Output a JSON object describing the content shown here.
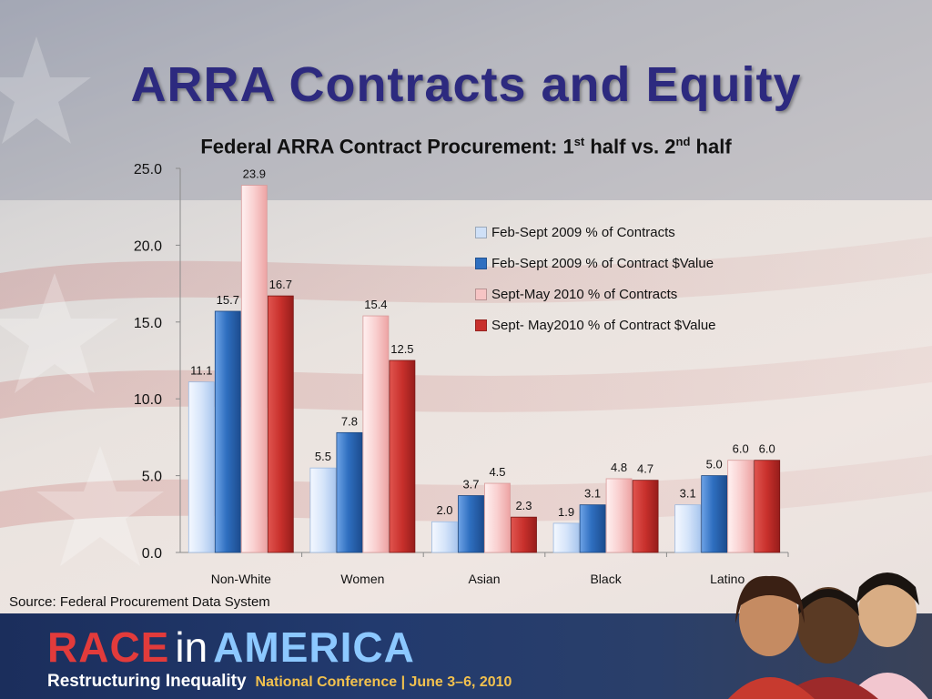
{
  "slide": {
    "title": "ARRA Contracts and Equity",
    "subtitle_main": "Federal ARRA Contract Procurement: 1",
    "subtitle_sup1": "st",
    "subtitle_mid": " half vs. 2",
    "subtitle_sup2": "nd",
    "subtitle_end": " half",
    "source": "Source: Federal Procurement Data System"
  },
  "branding": {
    "race": "RACE",
    "in": "in",
    "america": "AMERICA",
    "tagline": "Restructuring Inequality",
    "conference": "National Conference | June 3–6, 2010"
  },
  "colors": {
    "series": [
      "#cfe0f7",
      "#2f6fc0",
      "#f6c4c4",
      "#c8302c"
    ],
    "title": "#2d2a7f"
  },
  "chart_data": {
    "type": "bar",
    "title": "Federal ARRA Contract Procurement: 1st half vs. 2nd half",
    "categories": [
      "Non-White",
      "Women",
      "Asian",
      "Black",
      "Latino"
    ],
    "series": [
      {
        "name": "Feb-Sept 2009 % of Contracts",
        "values": [
          11.1,
          5.5,
          2.0,
          1.9,
          3.1
        ]
      },
      {
        "name": "Feb-Sept 2009 % of Contract $Value",
        "values": [
          15.7,
          7.8,
          3.7,
          3.1,
          5.0
        ]
      },
      {
        "name": "Sept-May 2010 % of Contracts",
        "values": [
          23.9,
          15.4,
          4.5,
          4.8,
          6.0
        ]
      },
      {
        "name": "Sept- May2010 % of Contract $Value",
        "values": [
          16.7,
          12.5,
          2.3,
          4.7,
          6.0
        ]
      }
    ],
    "ylim": [
      0,
      25
    ],
    "yticks": [
      0,
      5,
      10,
      15,
      20,
      25
    ],
    "ytick_labels": [
      "0.0",
      "5.0",
      "10.0",
      "15.0",
      "20.0",
      "25.0"
    ],
    "data_labels": [
      [
        "11.1",
        "5.5",
        "2.0",
        "1.9",
        "3.1"
      ],
      [
        "15.7",
        "7.8",
        "3.7",
        "3.1",
        "5.0"
      ],
      [
        "23.9",
        "15.4",
        "4.5",
        "4.8",
        "6.0"
      ],
      [
        "16.7",
        "12.5",
        "2.3",
        "4.7",
        "6.0"
      ]
    ],
    "legend_position": "upper-right",
    "grid": false
  }
}
